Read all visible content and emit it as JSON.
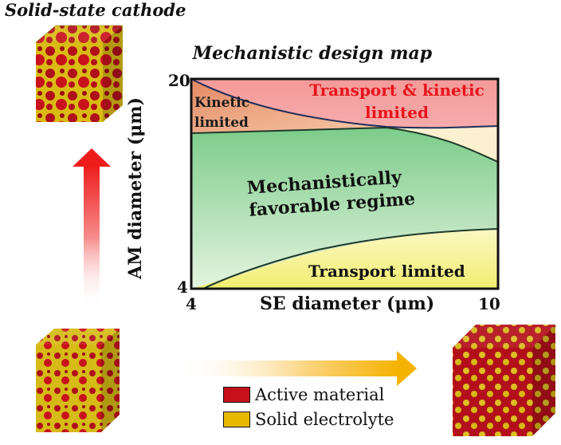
{
  "header": {
    "cathode_title": "Solid-state cathode"
  },
  "map": {
    "title": "Mechanistic design map",
    "ylabel": "AM diameter (μm)",
    "xlabel": "SE diameter (μm)",
    "y_ticks": [
      "20",
      "4"
    ],
    "x_ticks": [
      "4",
      "10"
    ],
    "regions": {
      "transport_kinetic": [
        "Transport & kinetic",
        "limited"
      ],
      "kinetic": [
        "Kinetic",
        "limited"
      ],
      "mechanical": [
        "Mechanistically",
        "favorable regime"
      ],
      "transport": "Transport limited"
    },
    "colors": {
      "transport_kinetic": "#f4a0a0",
      "kinetic": "#e9a27a",
      "mechanical": "#7ccc8a",
      "transport": "#f4f08a",
      "corner": "#fbf0cf",
      "boundary": "#1f2d5a",
      "title_red": "#e8141c"
    }
  },
  "legend": {
    "items": [
      {
        "label": "Active material",
        "color": "#c8101a"
      },
      {
        "label": "Solid electrolyte",
        "color": "#e7b800"
      }
    ]
  }
}
